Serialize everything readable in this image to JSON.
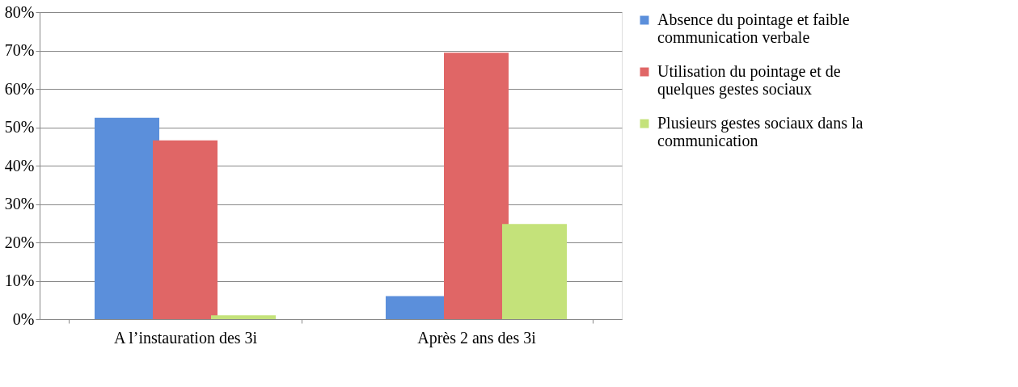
{
  "chart_data": {
    "type": "bar",
    "categories": [
      "A l’instauration des 3i",
      "Après 2 ans des 3i"
    ],
    "series": [
      {
        "name": "Absence du pointage et faible communication verbale",
        "color": "#5b8fdb",
        "values": [
          52.5,
          6
        ]
      },
      {
        "name": "Utilisation du pointage et de quelques gestes sociaux",
        "color": "#e06666",
        "values": [
          46.6,
          69.4
        ]
      },
      {
        "name": "Plusieurs gestes sociaux dans la communication",
        "color": "#c4e27a",
        "values": [
          1,
          24.8
        ]
      }
    ],
    "ylim": [
      0,
      80
    ],
    "yticks": [
      {
        "value": 0,
        "label": "0%"
      },
      {
        "value": 10,
        "label": "10%"
      },
      {
        "value": 20,
        "label": "20%"
      },
      {
        "value": 30,
        "label": "30%"
      },
      {
        "value": 40,
        "label": "40%"
      },
      {
        "value": 50,
        "label": "50%"
      },
      {
        "value": 60,
        "label": "60%"
      },
      {
        "value": 70,
        "label": "70%"
      },
      {
        "value": 80,
        "label": "80%"
      }
    ],
    "grid": "y",
    "legend": "right"
  }
}
